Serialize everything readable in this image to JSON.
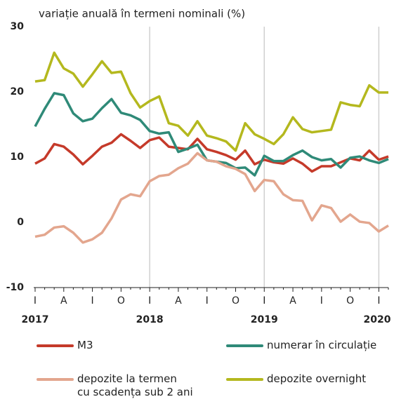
{
  "chart_data": {
    "type": "line",
    "title": "variație anuală în termeni nominali (%)",
    "categories": [
      "I",
      null,
      null,
      "A",
      null,
      null,
      "I",
      null,
      null,
      "O",
      null,
      null,
      "I",
      null,
      null,
      "A",
      null,
      null,
      "I",
      null,
      null,
      "O",
      null,
      null,
      "I",
      null,
      null,
      "A",
      null,
      null,
      "I",
      null,
      null,
      "O",
      null,
      null,
      "I",
      null
    ],
    "year_labels": [
      "2017",
      "2018",
      "2019",
      "2020"
    ],
    "ylim": [
      -10,
      30
    ],
    "yticks": [
      -10,
      0,
      10,
      20,
      30
    ],
    "year_grid": true,
    "series": [
      {
        "name": "M3",
        "color": "#c53a2a",
        "values": [
          9,
          9.8,
          12,
          11.6,
          10.4,
          8.9,
          10.2,
          11.6,
          12.2,
          13.5,
          12.5,
          11.4,
          12.6,
          13,
          11.6,
          11.4,
          11.2,
          12.8,
          11.2,
          10.8,
          10.3,
          9.6,
          11,
          8.9,
          9.6,
          9.2,
          9,
          9.8,
          9,
          7.8,
          8.6,
          8.6,
          9.2,
          9.8,
          9.5,
          11,
          9.6,
          10.1
        ]
      },
      {
        "name": "numerar în circulație",
        "color": "#2f8a78",
        "values": [
          14.7,
          17.4,
          19.8,
          19.5,
          16.7,
          15.5,
          15.9,
          17.5,
          18.9,
          16.8,
          16.4,
          15.7,
          14,
          13.6,
          13.8,
          10.8,
          11.3,
          11.9,
          9.5,
          9.3,
          9.1,
          8.3,
          8.4,
          7.2,
          10.2,
          9.4,
          9.4,
          10.3,
          11,
          10,
          9.5,
          9.7,
          8.4,
          9.9,
          10.1,
          9.5,
          9.1,
          9.7
        ]
      },
      {
        "name": "depozite la termen\ncu scadența sub 2 ani",
        "color": "#e3a68e",
        "values": [
          -2.2,
          -1.9,
          -0.8,
          -0.6,
          -1.6,
          -3.1,
          -2.6,
          -1.6,
          0.6,
          3.5,
          4.3,
          4,
          6.3,
          7.1,
          7.3,
          8.3,
          9,
          10.6,
          9.5,
          9.3,
          8.6,
          8.2,
          7.4,
          4.8,
          6.5,
          6.3,
          4.3,
          3.4,
          3.3,
          0.3,
          2.6,
          2.2,
          0.1,
          1.2,
          0.1,
          -0.1,
          -1.4,
          -0.5
        ]
      },
      {
        "name": "depozite overnight",
        "color": "#b4b81e",
        "values": [
          21.6,
          21.8,
          26,
          23.6,
          22.8,
          20.8,
          22.7,
          24.7,
          22.9,
          23.1,
          19.8,
          17.6,
          18.6,
          19.3,
          15.2,
          14.8,
          13.3,
          15.5,
          13.3,
          12.9,
          12.4,
          11,
          15.2,
          13.5,
          12.8,
          12,
          13.5,
          16.1,
          14.3,
          13.8,
          14,
          14.2,
          18.4,
          18,
          17.8,
          21,
          19.9,
          19.9
        ]
      }
    ]
  }
}
